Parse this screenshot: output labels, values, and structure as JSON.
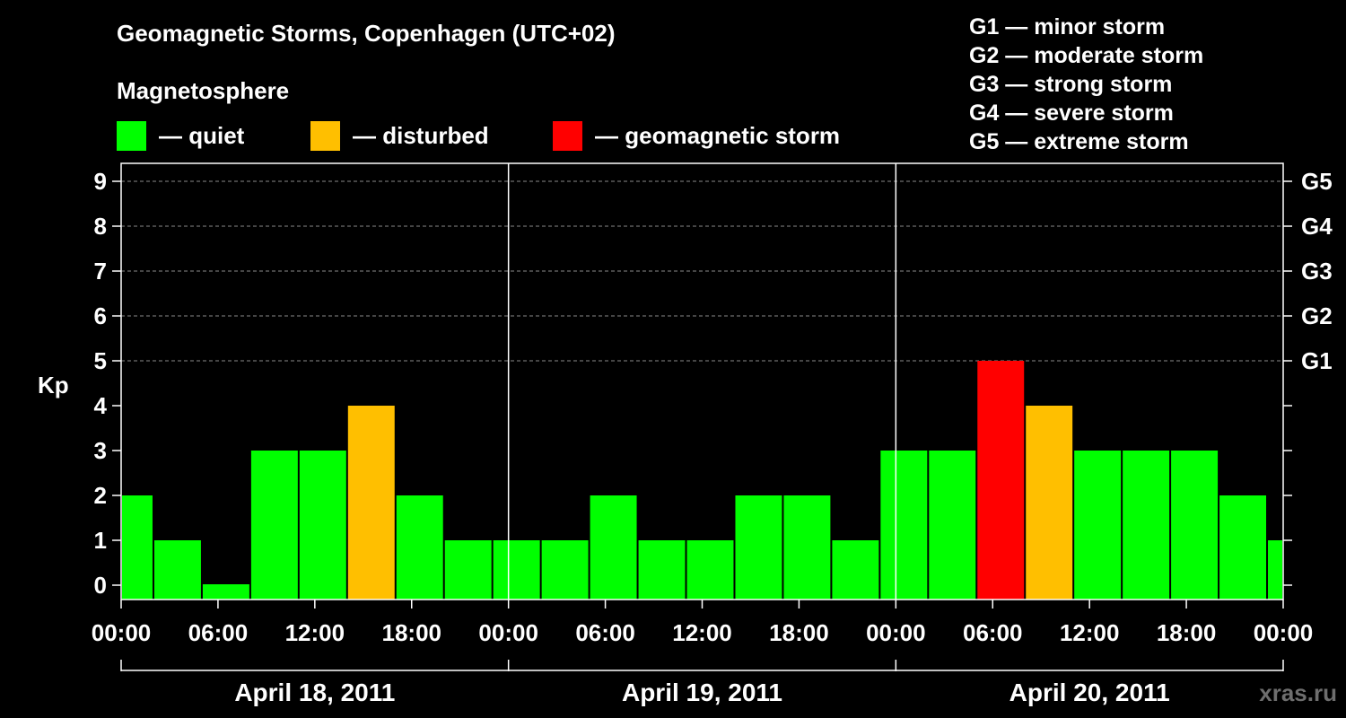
{
  "header": {
    "title": "Geomagnetic Storms, Copenhagen (UTC+02)",
    "subtitle": "Magnetosphere"
  },
  "legend": [
    {
      "label": "— quiet",
      "color": "#00FF00"
    },
    {
      "label": "— disturbed",
      "color": "#FFBF00"
    },
    {
      "label": "— geomagnetic storm",
      "color": "#FF0000"
    }
  ],
  "storm_scale": [
    "G1 — minor storm",
    "G2 — moderate storm",
    "G3 — strong storm",
    "G4 — severe storm",
    "G5 — extreme storm"
  ],
  "watermark": "xras.ru",
  "chart_data": {
    "type": "bar",
    "title": "Geomagnetic Storms, Copenhagen (UTC+02)",
    "ylabel": "Kp",
    "ylim": [
      0,
      9
    ],
    "yticks": [
      0,
      1,
      2,
      3,
      4,
      5,
      6,
      7,
      8,
      9
    ],
    "right_axis_labels": [
      {
        "kp": 5,
        "label": "G1"
      },
      {
        "kp": 6,
        "label": "G2"
      },
      {
        "kp": 7,
        "label": "G3"
      },
      {
        "kp": 8,
        "label": "G4"
      },
      {
        "kp": 9,
        "label": "G5"
      }
    ],
    "x_tick_labels": [
      "00:00",
      "06:00",
      "12:00",
      "18:00",
      "00:00",
      "06:00",
      "12:00",
      "18:00",
      "00:00",
      "06:00",
      "12:00",
      "18:00",
      "00:00"
    ],
    "days": [
      "April 18, 2011",
      "April 19, 2011",
      "April 20, 2011"
    ],
    "grid": "horizontal dashed at Kp 5–9",
    "colors": {
      "quiet": "#00FF00",
      "disturbed": "#FFBF00",
      "storm": "#FF0000"
    },
    "bars": [
      {
        "start": "2011-04-18 00:00",
        "end": "2011-04-18 02:00",
        "kp": 2,
        "level": "quiet"
      },
      {
        "start": "2011-04-18 02:00",
        "end": "2011-04-18 05:00",
        "kp": 1,
        "level": "quiet"
      },
      {
        "start": "2011-04-18 05:00",
        "end": "2011-04-18 08:00",
        "kp": 0,
        "level": "quiet"
      },
      {
        "start": "2011-04-18 08:00",
        "end": "2011-04-18 11:00",
        "kp": 3,
        "level": "quiet"
      },
      {
        "start": "2011-04-18 11:00",
        "end": "2011-04-18 14:00",
        "kp": 3,
        "level": "quiet"
      },
      {
        "start": "2011-04-18 14:00",
        "end": "2011-04-18 17:00",
        "kp": 4,
        "level": "disturbed"
      },
      {
        "start": "2011-04-18 17:00",
        "end": "2011-04-18 20:00",
        "kp": 2,
        "level": "quiet"
      },
      {
        "start": "2011-04-18 20:00",
        "end": "2011-04-18 23:00",
        "kp": 1,
        "level": "quiet"
      },
      {
        "start": "2011-04-18 23:00",
        "end": "2011-04-19 02:00",
        "kp": 1,
        "level": "quiet"
      },
      {
        "start": "2011-04-19 02:00",
        "end": "2011-04-19 05:00",
        "kp": 1,
        "level": "quiet"
      },
      {
        "start": "2011-04-19 05:00",
        "end": "2011-04-19 08:00",
        "kp": 2,
        "level": "quiet"
      },
      {
        "start": "2011-04-19 08:00",
        "end": "2011-04-19 11:00",
        "kp": 1,
        "level": "quiet"
      },
      {
        "start": "2011-04-19 11:00",
        "end": "2011-04-19 14:00",
        "kp": 1,
        "level": "quiet"
      },
      {
        "start": "2011-04-19 14:00",
        "end": "2011-04-19 17:00",
        "kp": 2,
        "level": "quiet"
      },
      {
        "start": "2011-04-19 17:00",
        "end": "2011-04-19 20:00",
        "kp": 2,
        "level": "quiet"
      },
      {
        "start": "2011-04-19 20:00",
        "end": "2011-04-19 23:00",
        "kp": 1,
        "level": "quiet"
      },
      {
        "start": "2011-04-19 23:00",
        "end": "2011-04-20 02:00",
        "kp": 3,
        "level": "quiet"
      },
      {
        "start": "2011-04-20 02:00",
        "end": "2011-04-20 05:00",
        "kp": 3,
        "level": "quiet"
      },
      {
        "start": "2011-04-20 05:00",
        "end": "2011-04-20 08:00",
        "kp": 5,
        "level": "storm"
      },
      {
        "start": "2011-04-20 08:00",
        "end": "2011-04-20 11:00",
        "kp": 4,
        "level": "disturbed"
      },
      {
        "start": "2011-04-20 11:00",
        "end": "2011-04-20 14:00",
        "kp": 3,
        "level": "quiet"
      },
      {
        "start": "2011-04-20 14:00",
        "end": "2011-04-20 17:00",
        "kp": 3,
        "level": "quiet"
      },
      {
        "start": "2011-04-20 17:00",
        "end": "2011-04-20 20:00",
        "kp": 3,
        "level": "quiet"
      },
      {
        "start": "2011-04-20 20:00",
        "end": "2011-04-20 23:00",
        "kp": 2,
        "level": "quiet"
      },
      {
        "start": "2011-04-20 23:00",
        "end": "2011-04-21 00:00",
        "kp": 1,
        "level": "quiet"
      }
    ]
  }
}
